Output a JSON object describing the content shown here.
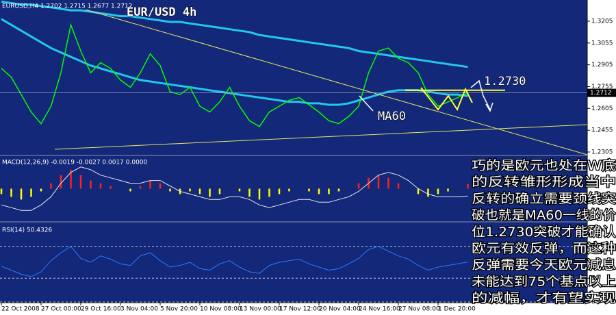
{
  "chart_data": [
    {
      "type": "line",
      "title": "EUR/USD 4h",
      "subtitle": "EURUSD,H4 1.2702 1.2715 1.2677 1.2712",
      "categories": [
        "22 Oct 2008",
        null,
        null,
        null,
        "27 Oct 00:00",
        null,
        null,
        null,
        "29 Oct 16:00",
        null,
        null,
        null,
        "3 Nov 04:00",
        null,
        null,
        null,
        "5 Nov 20:00",
        null,
        null,
        null,
        "10 Nov 08:00",
        null,
        null,
        null,
        "13 Nov 00:00",
        null,
        null,
        null,
        "17 Nov 12:00",
        null,
        null,
        null,
        "20 Nov 04:00",
        null,
        null,
        null,
        "24 Nov 16:00",
        null,
        null,
        null,
        "27 Nov 08:00",
        null,
        null,
        null,
        "1 Dec 20:00",
        null,
        null,
        null
      ],
      "values": [
        1.288,
        1.282,
        1.27,
        1.258,
        1.25,
        1.262,
        1.285,
        1.318,
        1.3,
        1.285,
        1.292,
        1.288,
        1.28,
        1.275,
        1.285,
        1.298,
        1.29,
        1.272,
        1.27,
        1.275,
        1.262,
        1.258,
        1.265,
        1.275,
        1.262,
        1.252,
        1.248,
        1.258,
        1.262,
        1.266,
        1.268,
        1.263,
        1.258,
        1.252,
        1.25,
        1.255,
        1.262,
        1.285,
        1.3,
        1.302,
        1.295,
        1.292,
        1.285,
        1.27,
        1.262,
        1.265,
        1.268,
        1.2712
      ],
      "color": "#00ff00",
      "series": [
        {
          "color": "#22c8ec",
          "values": [
            1.334,
            1.333,
            1.332,
            1.332,
            1.331,
            1.33,
            1.329,
            1.328,
            1.328,
            1.327,
            1.326,
            1.325,
            1.324,
            1.324,
            1.323,
            1.322,
            1.321,
            1.32,
            1.32,
            1.319,
            1.318,
            1.317,
            1.316,
            1.315,
            1.314,
            1.313,
            1.311,
            1.31,
            1.309,
            1.308,
            1.307,
            1.306,
            1.305,
            1.304,
            1.303,
            1.302,
            1.3,
            1.299,
            1.298,
            1.297,
            1.296,
            1.295,
            1.294,
            1.293,
            1.292,
            1.291,
            1.29,
            1.289
          ]
        },
        {
          "color": "#22c8ec",
          "values": [
            1.322,
            1.318,
            1.314,
            1.31,
            1.306,
            1.302,
            1.299,
            1.296,
            1.293,
            1.29,
            1.288,
            1.286,
            1.284,
            1.282,
            1.28,
            1.279,
            1.278,
            1.277,
            1.276,
            1.275,
            1.274,
            1.273,
            1.272,
            1.271,
            1.27,
            1.269,
            1.268,
            1.267,
            1.266,
            1.265,
            1.265,
            1.264,
            1.264,
            1.263,
            1.263,
            1.264,
            1.266,
            1.268,
            1.27,
            1.272,
            1.273,
            1.273,
            1.273,
            1.272,
            1.271,
            1.27,
            1.27,
            1.269
          ]
        }
      ],
      "ylim": [
        1.2286,
        1.3351
      ],
      "yticks": [
        1.3205,
        1.3055,
        1.2905,
        1.2755,
        1.2605,
        1.2455,
        1.2305
      ],
      "current": {
        "value": 1.2712,
        "label": "1.2712"
      },
      "level": {
        "value": 1.273,
        "label": "1.2730",
        "color": "#ffff33"
      },
      "annotations": [
        "MA60"
      ]
    },
    {
      "type": "bar",
      "title": "MACD(12,26,9) -0.0019 -0.0027 0.0017 0.0000",
      "values": [
        -0.002,
        -0.003,
        -0.004,
        -0.003,
        -0.001,
        0.002,
        0.005,
        0.007,
        0.005,
        0.003,
        0.002,
        0.001,
        0.0,
        -0.001,
        0.001,
        0.003,
        0.002,
        -0.001,
        -0.002,
        -0.001,
        -0.002,
        -0.003,
        -0.002,
        0.0,
        -0.001,
        -0.003,
        -0.004,
        -0.003,
        -0.002,
        -0.001,
        0.0,
        -0.001,
        -0.002,
        -0.002,
        -0.001,
        0.0,
        0.002,
        0.004,
        0.005,
        0.004,
        0.002,
        0.0,
        -0.002,
        -0.003,
        -0.002,
        -0.001,
        0.0,
        0.0017
      ],
      "up_color": "#ff2020",
      "down_color": "#ffff00",
      "series": [
        {
          "color": "#e8e8e8",
          "values": [
            -0.006,
            -0.007,
            -0.008,
            -0.008,
            -0.006,
            -0.003,
            0.002,
            0.006,
            0.008,
            0.007,
            0.005,
            0.004,
            0.003,
            0.002,
            0.002,
            0.003,
            0.003,
            0.001,
            -0.001,
            -0.002,
            -0.003,
            -0.004,
            -0.004,
            -0.003,
            -0.003,
            -0.004,
            -0.006,
            -0.007,
            -0.006,
            -0.005,
            -0.004,
            -0.004,
            -0.005,
            -0.005,
            -0.004,
            -0.003,
            -0.001,
            0.002,
            0.005,
            0.006,
            0.005,
            0.003,
            0.0,
            -0.002,
            -0.003,
            -0.003,
            -0.003,
            -0.0027
          ]
        }
      ],
      "ylim": [
        -0.012,
        0.012
      ]
    },
    {
      "type": "line",
      "title": "RSI(14) 50.4326",
      "values": [
        45,
        40,
        35,
        32,
        38,
        52,
        62,
        70,
        55,
        50,
        58,
        54,
        48,
        46,
        58,
        62,
        52,
        44,
        46,
        50,
        42,
        40,
        48,
        52,
        44,
        38,
        36,
        46,
        50,
        52,
        54,
        48,
        44,
        40,
        42,
        48,
        55,
        66,
        70,
        64,
        58,
        54,
        46,
        40,
        44,
        46,
        48,
        50.4326
      ],
      "color": "#2a7bff",
      "ylim": [
        0,
        100
      ],
      "yticks": [
        0,
        30,
        70
      ]
    }
  ],
  "note": {
    "lines": [
      "巧的是欧元也处在W底",
      "的反转雏形形成当中",
      "反转的确立需要颈线突",
      "破也就是MA60一线的价",
      "位1.2730突破才能确认",
      "欧元有效反弹，而这种",
      "反弹需要今天欧元减息",
      "未能达到75个基点以上",
      "的减幅，才有望实现"
    ]
  }
}
